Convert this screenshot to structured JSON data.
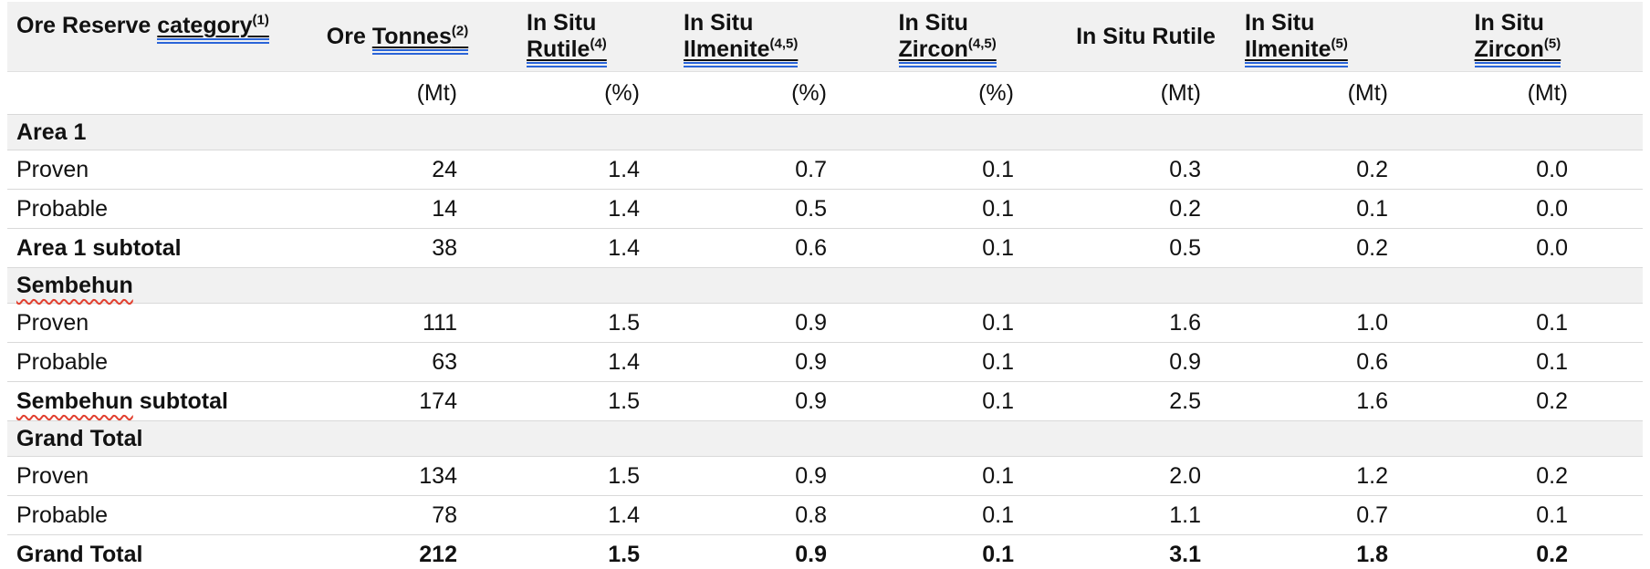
{
  "colors": {
    "section_bg": "#f1f1f1",
    "row_border": "#d9d9d9",
    "grammar_underline_blue": "#2a64d8",
    "spellcheck_squiggle_red": "#e2402f",
    "text": "#111111"
  },
  "table": {
    "headers": [
      {
        "pre": "Ore Reserve ",
        "link": "category",
        "sup": "(1)"
      },
      {
        "pre": "Ore ",
        "link": "Tonnes",
        "sup": "(2)"
      },
      {
        "pre": "In Situ ",
        "link": "Rutile",
        "sup": "(4)"
      },
      {
        "pre": "In Situ ",
        "link": "Ilmenite",
        "sup": "(4,5)"
      },
      {
        "pre": "In Situ ",
        "link": "Zircon",
        "sup": "(4,5)"
      },
      {
        "pre": "In Situ Rutile",
        "link": "",
        "sup": ""
      },
      {
        "pre": "In Situ ",
        "link": "Ilmenite",
        "sup": "(5)"
      },
      {
        "pre": "In Situ ",
        "link": "Zircon",
        "sup": "(5)"
      }
    ],
    "units": [
      "",
      "(Mt)",
      "(%)",
      "(%)",
      "(%)",
      "(Mt)",
      "(Mt)",
      "(Mt)"
    ],
    "rows": [
      {
        "type": "section",
        "label": "Area 1"
      },
      {
        "type": "data",
        "label": "Proven",
        "values": [
          "24",
          "1.4",
          "0.7",
          "0.1",
          "0.3",
          "0.2",
          "0.0"
        ]
      },
      {
        "type": "data",
        "label": "Probable",
        "values": [
          "14",
          "1.4",
          "0.5",
          "0.1",
          "0.2",
          "0.1",
          "0.0"
        ]
      },
      {
        "type": "subtotal",
        "label": "Area 1 subtotal",
        "values": [
          "38",
          "1.4",
          "0.6",
          "0.1",
          "0.5",
          "0.2",
          "0.0"
        ]
      },
      {
        "type": "section",
        "label": "Sembehun",
        "squiggle_word": "Sembehun",
        "label_rest": ""
      },
      {
        "type": "data",
        "label": "Proven",
        "values": [
          "111",
          "1.5",
          "0.9",
          "0.1",
          "1.6",
          "1.0",
          "0.1"
        ]
      },
      {
        "type": "data",
        "label": "Probable",
        "values": [
          "63",
          "1.4",
          "0.9",
          "0.1",
          "0.9",
          "0.6",
          "0.1"
        ]
      },
      {
        "type": "subtotal",
        "label": "Sembehun subtotal",
        "squiggle_word": "Sembehun",
        "label_rest": " subtotal",
        "values": [
          "174",
          "1.5",
          "0.9",
          "0.1",
          "2.5",
          "1.6",
          "0.2"
        ]
      },
      {
        "type": "section",
        "label": "Grand Total"
      },
      {
        "type": "data",
        "label": "Proven",
        "values": [
          "134",
          "1.5",
          "0.9",
          "0.1",
          "2.0",
          "1.2",
          "0.2"
        ]
      },
      {
        "type": "data",
        "label": "Probable",
        "values": [
          "78",
          "1.4",
          "0.8",
          "0.1",
          "1.1",
          "0.7",
          "0.1"
        ]
      },
      {
        "type": "total",
        "label": "Grand Total",
        "values": [
          "212",
          "1.5",
          "0.9",
          "0.1",
          "3.1",
          "1.8",
          "0.2"
        ]
      }
    ]
  }
}
